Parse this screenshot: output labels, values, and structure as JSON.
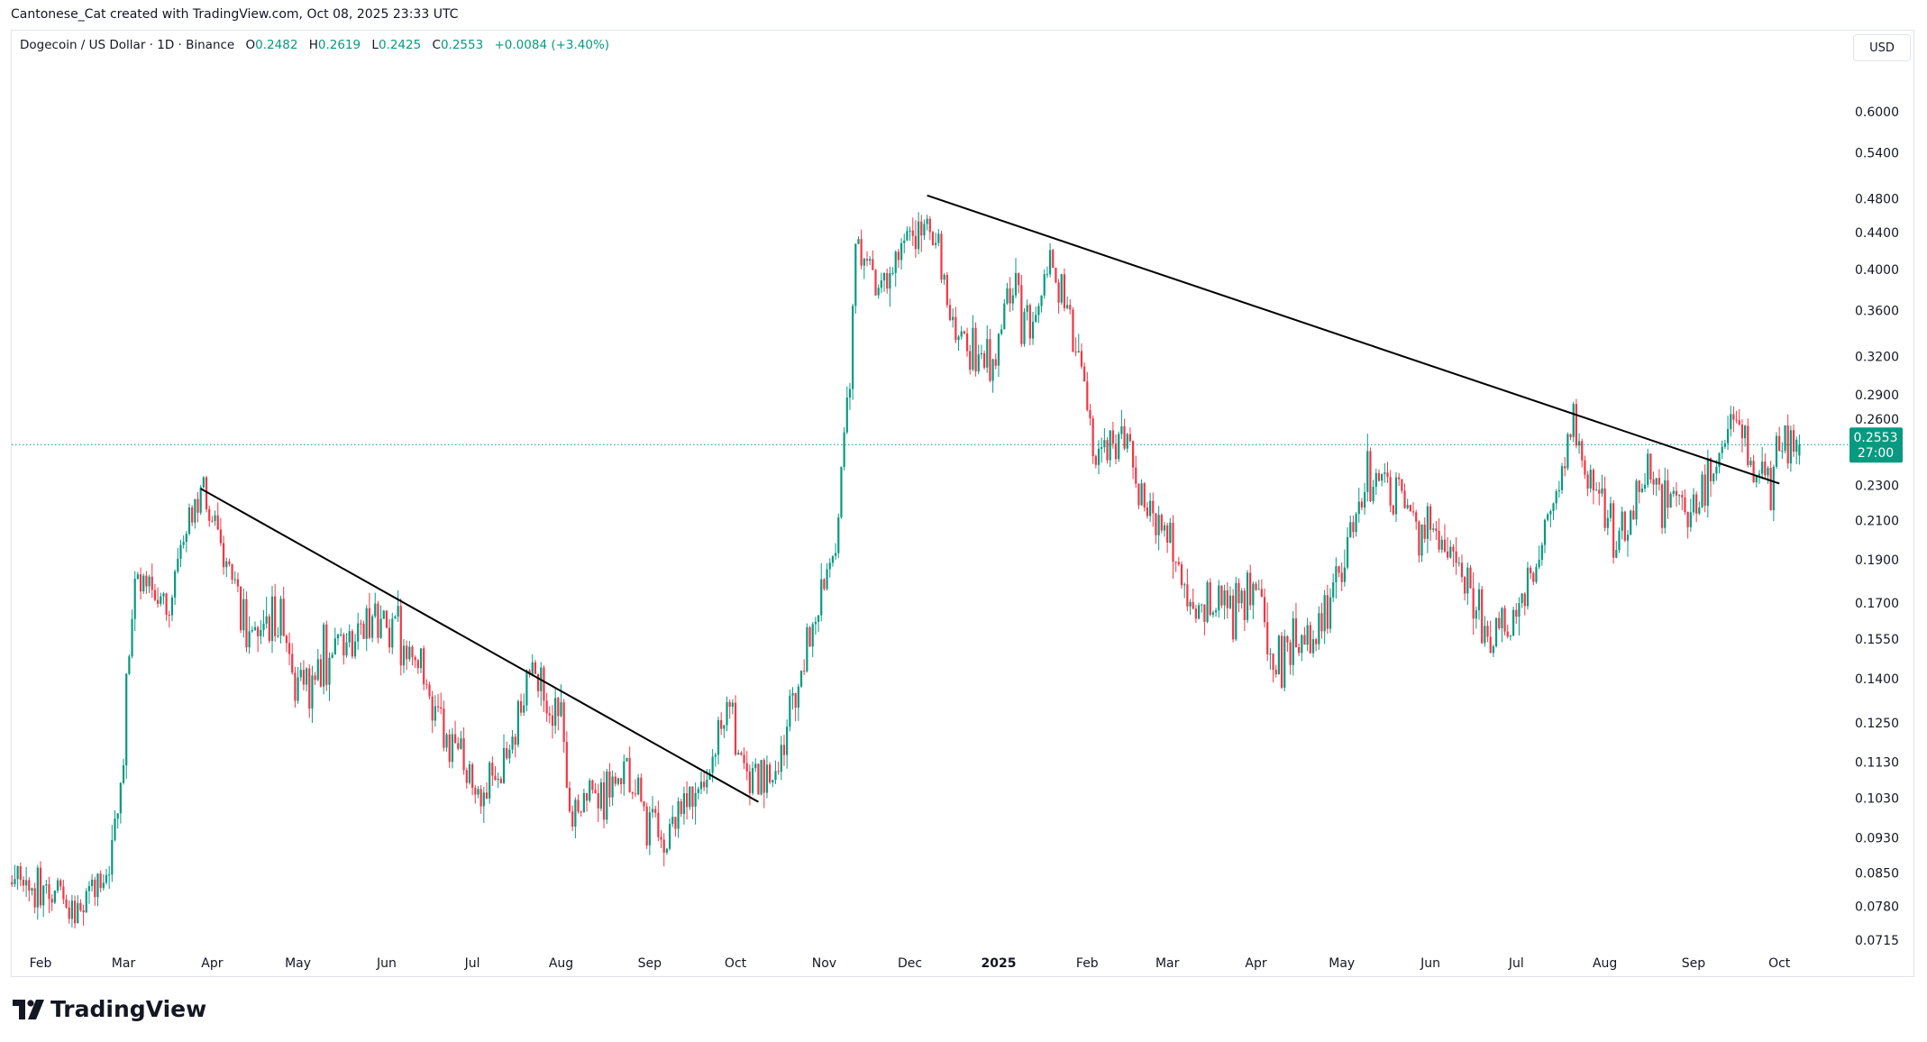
{
  "credit": "Cantonese_Cat created with TradingView.com, Oct 08, 2025 23:33 UTC",
  "legend": {
    "symbol": "Dogecoin / US Dollar · 1D · Binance",
    "o_label": "O",
    "o": "0.2482",
    "h_label": "H",
    "h": "0.2619",
    "l_label": "L",
    "l": "0.2425",
    "c_label": "C",
    "c": "0.2553",
    "change": "+0.0084 (+3.40%)"
  },
  "currency_button": "USD",
  "price_label": {
    "price": "0.2553",
    "countdown": "27:00"
  },
  "logo_text": "TradingView",
  "colors": {
    "up": "#089981",
    "down": "#f23645",
    "trendline": "#000000",
    "last_price": "#089981"
  },
  "chart_data": {
    "type": "candlestick",
    "interval": "1D",
    "y_scale": "log",
    "y_ticks": [
      "0.6000",
      "0.5400",
      "0.4800",
      "0.4400",
      "0.4000",
      "0.3600",
      "0.3200",
      "0.2900",
      "0.2600",
      "0.2300",
      "0.2100",
      "0.1900",
      "0.1700",
      "0.1550",
      "0.1400",
      "0.1250",
      "0.1130",
      "0.1030",
      "0.0930",
      "0.0850",
      "0.0780",
      "0.0715"
    ],
    "x_ticks": [
      {
        "label": "Feb",
        "date": "2024-02-01"
      },
      {
        "label": "Mar",
        "date": "2024-03-01"
      },
      {
        "label": "Apr",
        "date": "2024-04-01"
      },
      {
        "label": "May",
        "date": "2024-05-01"
      },
      {
        "label": "Jun",
        "date": "2024-06-01"
      },
      {
        "label": "Jul",
        "date": "2024-07-01"
      },
      {
        "label": "Aug",
        "date": "2024-08-01"
      },
      {
        "label": "Sep",
        "date": "2024-09-01"
      },
      {
        "label": "Oct",
        "date": "2024-10-01"
      },
      {
        "label": "Nov",
        "date": "2024-11-01"
      },
      {
        "label": "Dec",
        "date": "2024-12-01"
      },
      {
        "label": "2025",
        "date": "2025-01-01",
        "bold": true
      },
      {
        "label": "Feb",
        "date": "2025-02-01"
      },
      {
        "label": "Mar",
        "date": "2025-03-01"
      },
      {
        "label": "Apr",
        "date": "2025-04-01"
      },
      {
        "label": "May",
        "date": "2025-05-01"
      },
      {
        "label": "Jun",
        "date": "2025-06-01"
      },
      {
        "label": "Jul",
        "date": "2025-07-01"
      },
      {
        "label": "Aug",
        "date": "2025-08-01"
      },
      {
        "label": "Sep",
        "date": "2025-09-01"
      },
      {
        "label": "Oct",
        "date": "2025-10-01"
      }
    ],
    "approx_closes": [
      [
        "2024-01-22",
        0.083
      ],
      [
        "2024-02-10",
        0.078
      ],
      [
        "2024-02-25",
        0.086
      ],
      [
        "2024-03-01",
        0.12
      ],
      [
        "2024-03-05",
        0.181
      ],
      [
        "2024-03-15",
        0.165
      ],
      [
        "2024-03-28",
        0.226
      ],
      [
        "2024-04-05",
        0.2
      ],
      [
        "2024-04-15",
        0.153
      ],
      [
        "2024-04-25",
        0.165
      ],
      [
        "2024-05-01",
        0.136
      ],
      [
        "2024-05-15",
        0.153
      ],
      [
        "2024-06-01",
        0.162
      ],
      [
        "2024-06-10",
        0.15
      ],
      [
        "2024-06-20",
        0.124
      ],
      [
        "2024-07-05",
        0.105
      ],
      [
        "2024-07-15",
        0.12
      ],
      [
        "2024-07-22",
        0.141
      ],
      [
        "2024-08-01",
        0.124
      ],
      [
        "2024-08-05",
        0.097
      ],
      [
        "2024-08-15",
        0.105
      ],
      [
        "2024-08-25",
        0.109
      ],
      [
        "2024-09-06",
        0.093
      ],
      [
        "2024-09-20",
        0.105
      ],
      [
        "2024-09-28",
        0.128
      ],
      [
        "2024-10-05",
        0.105
      ],
      [
        "2024-10-15",
        0.109
      ],
      [
        "2024-10-25",
        0.146
      ],
      [
        "2024-10-31",
        0.17
      ],
      [
        "2024-11-05",
        0.194
      ],
      [
        "2024-11-10",
        0.31
      ],
      [
        "2024-11-12",
        0.425
      ],
      [
        "2024-11-20",
        0.375
      ],
      [
        "2024-11-28",
        0.425
      ],
      [
        "2024-12-07",
        0.46
      ],
      [
        "2024-12-12",
        0.398
      ],
      [
        "2024-12-20",
        0.321
      ],
      [
        "2024-12-31",
        0.321
      ],
      [
        "2025-01-05",
        0.387
      ],
      [
        "2025-01-12",
        0.342
      ],
      [
        "2025-01-18",
        0.412
      ],
      [
        "2025-01-27",
        0.342
      ],
      [
        "2025-02-01",
        0.3
      ],
      [
        "2025-02-03",
        0.249
      ],
      [
        "2025-02-10",
        0.257
      ],
      [
        "2025-02-28",
        0.205
      ],
      [
        "2025-03-10",
        0.165
      ],
      [
        "2025-03-20",
        0.17
      ],
      [
        "2025-04-01",
        0.175
      ],
      [
        "2025-04-07",
        0.146
      ],
      [
        "2025-04-20",
        0.153
      ],
      [
        "2025-05-01",
        0.181
      ],
      [
        "2025-05-10",
        0.24
      ],
      [
        "2025-05-20",
        0.226
      ],
      [
        "2025-06-01",
        0.2
      ],
      [
        "2025-06-10",
        0.194
      ],
      [
        "2025-06-22",
        0.153
      ],
      [
        "2025-07-01",
        0.165
      ],
      [
        "2025-07-10",
        0.2
      ],
      [
        "2025-07-21",
        0.265
      ],
      [
        "2025-08-01",
        0.212
      ],
      [
        "2025-08-05",
        0.197
      ],
      [
        "2025-08-15",
        0.234
      ],
      [
        "2025-09-01",
        0.216
      ],
      [
        "2025-09-10",
        0.245
      ],
      [
        "2025-09-14",
        0.283
      ],
      [
        "2025-09-22",
        0.245
      ],
      [
        "2025-09-28",
        0.234
      ],
      [
        "2025-10-04",
        0.262
      ],
      [
        "2025-10-08",
        0.2553
      ]
    ],
    "last_candle": {
      "date": "2025-10-08",
      "open": 0.2482,
      "high": 0.2619,
      "low": 0.2425,
      "close": 0.2553
    },
    "last_price": 0.2553,
    "trendlines": [
      {
        "from": [
          "2024-03-28",
          0.228
        ],
        "to": [
          "2024-10-09",
          0.102
        ]
      },
      {
        "from": [
          "2024-12-07",
          0.484
        ],
        "to": [
          "2025-10-01",
          0.231
        ]
      }
    ]
  }
}
